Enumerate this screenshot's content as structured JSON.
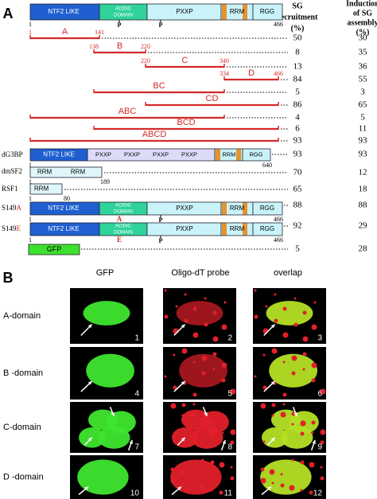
{
  "panel_a": {
    "label": "A",
    "column_headers": [
      [
        "SG",
        "recruitment",
        "(%)"
      ],
      [
        "Induction",
        "of SG",
        "assembly",
        "(%)"
      ]
    ],
    "domain_map": {
      "domains": [
        "NTF2 LIKE",
        "ACIDIC",
        "DOMAIN",
        "PXXP",
        "RRM",
        "RGG"
      ],
      "phospho_marks": [
        "P",
        "P"
      ],
      "start": 1,
      "end": 466
    },
    "fragments": [
      {
        "name": "A",
        "start": 1,
        "end": 141,
        "sg_recruitment": 50,
        "sg_induction": 30
      },
      {
        "name": "B",
        "start": 138,
        "end": 220,
        "sg_recruitment": 8,
        "sg_induction": 35
      },
      {
        "name": "C",
        "start": 220,
        "end": 340,
        "sg_recruitment": 13,
        "sg_induction": 36
      },
      {
        "name": "D",
        "start": 334,
        "end": 466,
        "sg_recruitment": 84,
        "sg_induction": 55
      },
      {
        "name": "BC",
        "sg_recruitment": 5,
        "sg_induction": 3
      },
      {
        "name": "CD",
        "sg_recruitment": 86,
        "sg_induction": 65
      },
      {
        "name": "ABC",
        "sg_recruitment": 4,
        "sg_induction": 5
      },
      {
        "name": "BCD",
        "sg_recruitment": 6,
        "sg_induction": 11
      },
      {
        "name": "ABCD",
        "sg_recruitment": 93,
        "sg_induction": 93
      }
    ],
    "constructs": [
      {
        "name": "dG3BP",
        "domains": [
          "NTF2 LIKE",
          "PXXP",
          "PXXP",
          "PXXP",
          "PXXP",
          "RRM",
          "RGG"
        ],
        "start": 1,
        "end": 640,
        "sg_recruitment": 93,
        "sg_induction": 93
      },
      {
        "name": "dmSF2",
        "domains": [
          "RRM",
          "RRM"
        ],
        "start": 1,
        "end": 189,
        "sg_recruitment": 70,
        "sg_induction": 12
      },
      {
        "name": "RSF1",
        "domains": [
          "RRM"
        ],
        "start": 1,
        "end": 80,
        "sg_recruitment": 65,
        "sg_induction": 18
      },
      {
        "name": "S149",
        "residue": "A",
        "domains": [
          "NTF2 LIKE",
          "ACIDIC",
          "DOMAIN",
          "PXXP",
          "RRM",
          "RGG"
        ],
        "phospho_marks": [
          "P"
        ],
        "start": 1,
        "end": 466,
        "sg_recruitment": 88,
        "sg_induction": 88
      },
      {
        "name": "S149",
        "residue": "E",
        "domains": [
          "NTF2 LIKE",
          "ACIDIC",
          "DOMAIN",
          "PXXP",
          "RRM",
          "RGG"
        ],
        "phospho_marks": [
          "P"
        ],
        "start": 1,
        "end": 466,
        "sg_recruitment": 92,
        "sg_induction": 29
      },
      {
        "domains": [
          "GFP"
        ],
        "sg_recruitment": 5,
        "sg_induction": 28
      }
    ]
  },
  "panel_b": {
    "label": "B",
    "column_headers": [
      "GFP",
      "Oligo-dT probe",
      "overlap"
    ],
    "rows": [
      {
        "name": "A-domain",
        "panels": [
          1,
          2,
          3
        ]
      },
      {
        "name": "B -domain",
        "panels": [
          4,
          5,
          6
        ]
      },
      {
        "name": "C-domain",
        "panels": [
          7,
          8,
          9
        ]
      },
      {
        "name": "D -domain",
        "panels": [
          10,
          11,
          12
        ]
      }
    ]
  }
}
